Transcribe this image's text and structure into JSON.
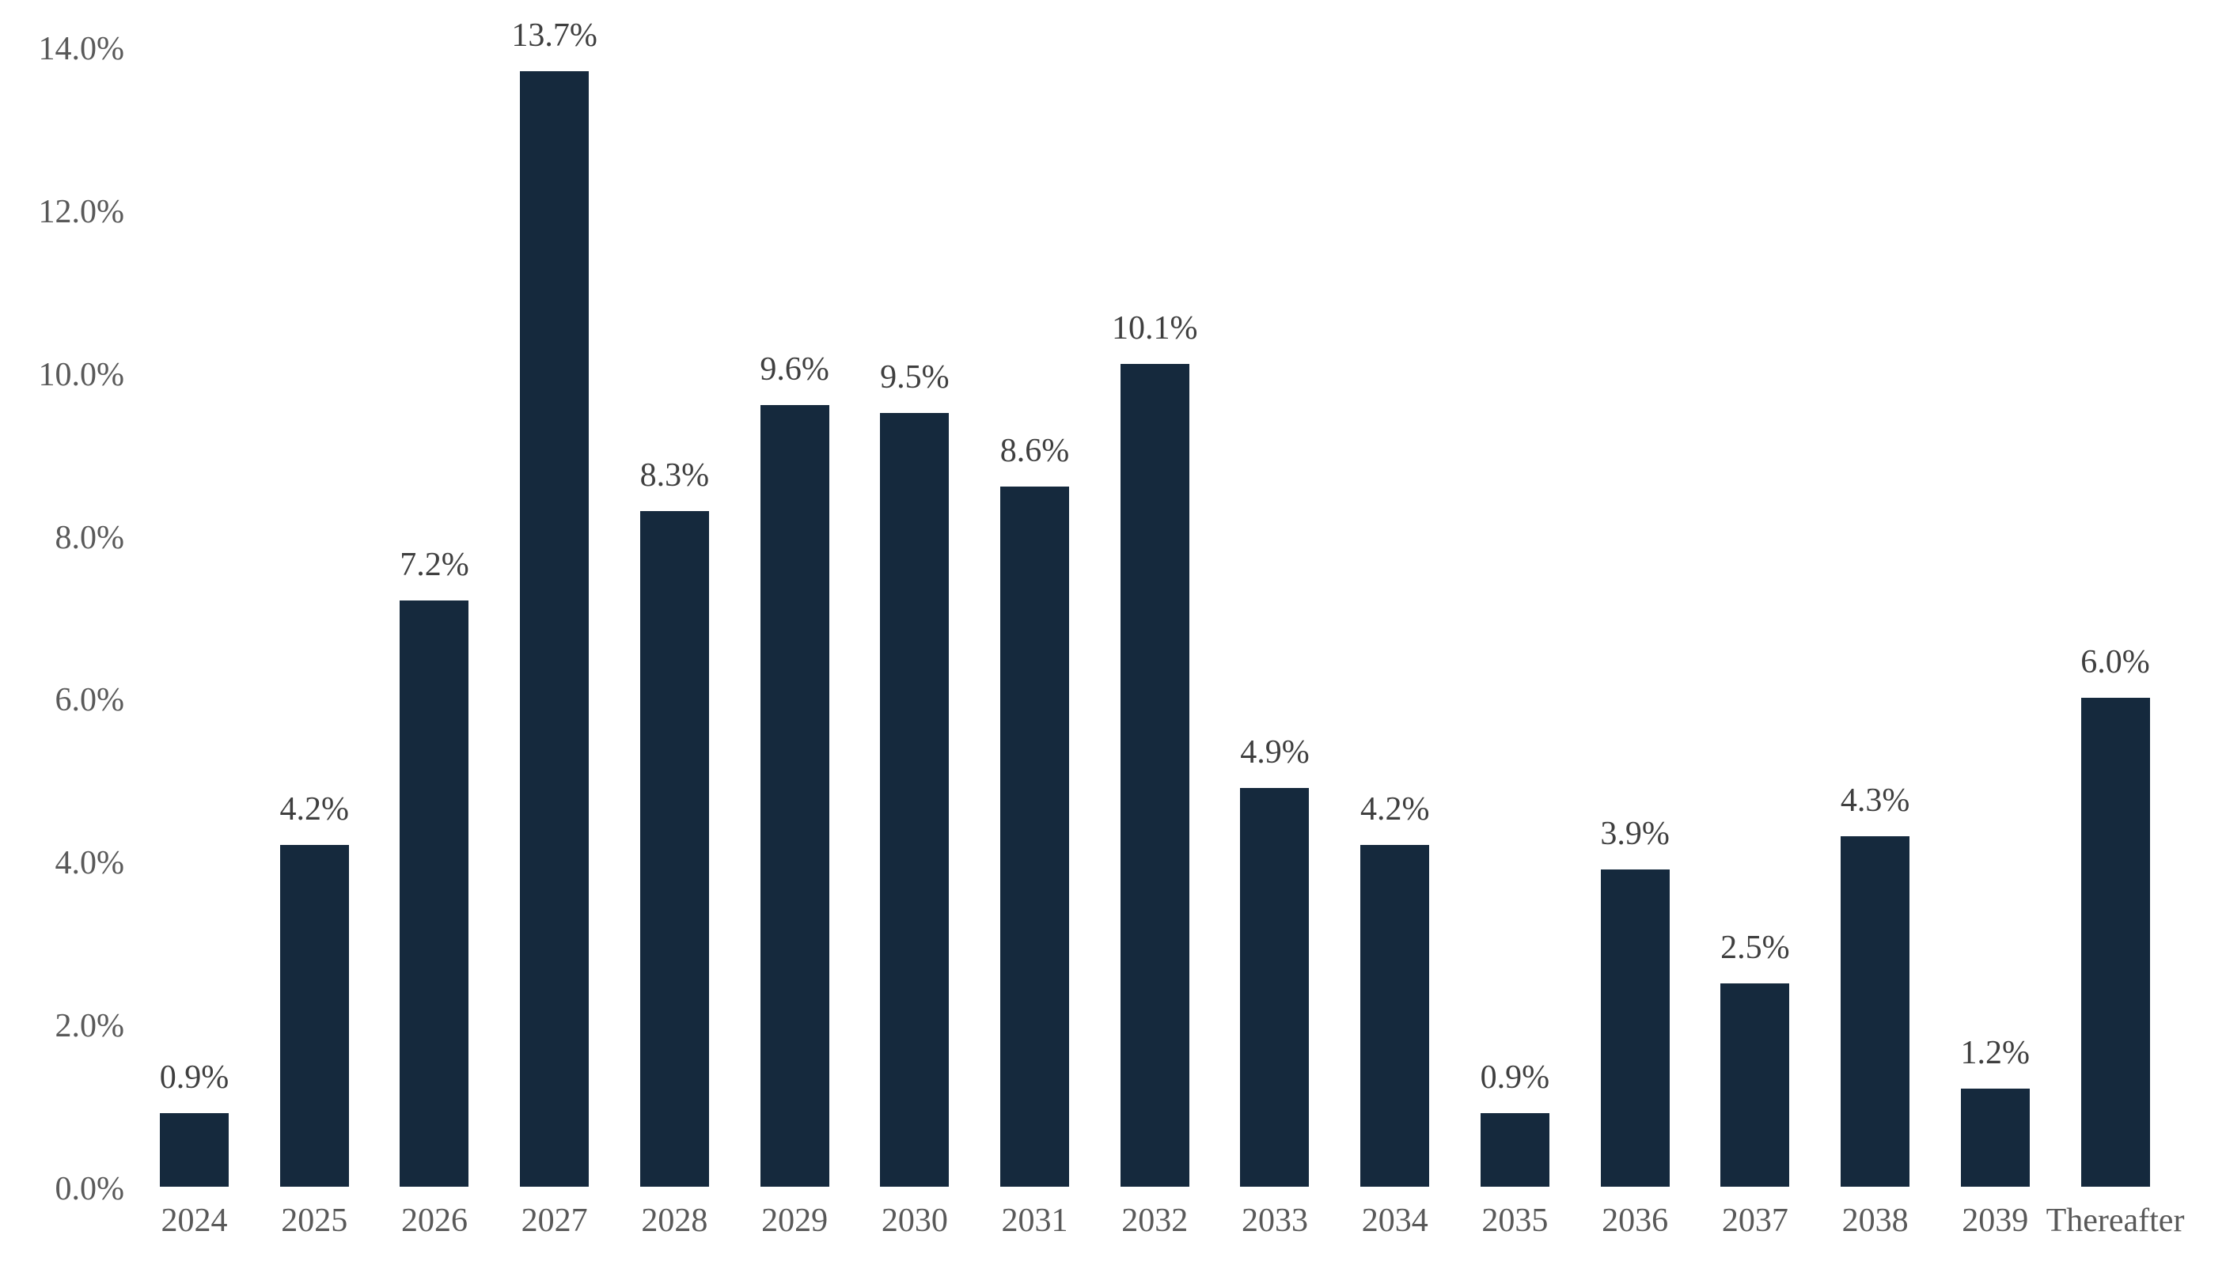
{
  "chart_data": {
    "type": "bar",
    "title": "",
    "xlabel": "",
    "ylabel": "",
    "categories": [
      "2024",
      "2025",
      "2026",
      "2027",
      "2028",
      "2029",
      "2030",
      "2031",
      "2032",
      "2033",
      "2034",
      "2035",
      "2036",
      "2037",
      "2038",
      "2039",
      "Thereafter"
    ],
    "values": [
      0.9,
      4.2,
      7.2,
      13.7,
      8.3,
      9.6,
      9.5,
      8.6,
      10.1,
      4.9,
      4.2,
      0.9,
      3.9,
      2.5,
      4.3,
      1.2,
      6.0
    ],
    "value_labels": [
      "0.9%",
      "4.2%",
      "7.2%",
      "13.7%",
      "8.3%",
      "9.6%",
      "9.5%",
      "8.6%",
      "10.1%",
      "4.9%",
      "4.2%",
      "0.9%",
      "3.9%",
      "2.5%",
      "4.3%",
      "1.2%",
      "6.0%"
    ],
    "y_ticks": [
      "14.0%",
      "12.0%",
      "10.0%",
      "8.0%",
      "6.0%",
      "4.0%",
      "2.0%",
      "0.0%"
    ],
    "ylim": [
      0,
      14
    ],
    "unit": "percent",
    "grid": "off",
    "legend": "none",
    "data_labels": "above-bars",
    "bar_color": "#15293d",
    "axis_label_color": "#595959",
    "data_label_color": "#3f3f3f",
    "background_color": "#ffffff"
  }
}
